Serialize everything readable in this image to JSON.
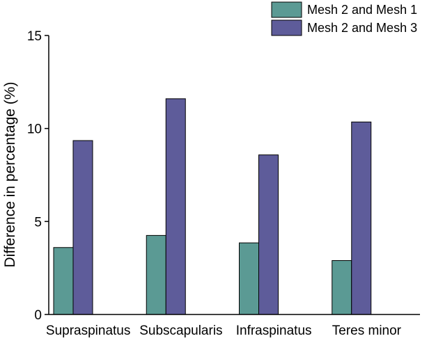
{
  "chart_data": {
    "type": "bar",
    "title": "",
    "xlabel": "",
    "ylabel": "Difference in percentage (%)",
    "ylim": [
      0,
      15
    ],
    "yticks": [
      0,
      5,
      10,
      15
    ],
    "categories": [
      "Supraspinatus",
      "Subscapularis",
      "Infraspinatus",
      "Teres minor"
    ],
    "series": [
      {
        "name": "Mesh 2 and Mesh 1",
        "color": "#5b9a94",
        "values": [
          3.6,
          4.25,
          3.85,
          2.9
        ]
      },
      {
        "name": "Mesh 2 and Mesh 3",
        "color": "#5e5c9a",
        "values": [
          9.35,
          11.6,
          8.58,
          10.35
        ]
      }
    ],
    "legend": "top-right",
    "grid": false
  }
}
